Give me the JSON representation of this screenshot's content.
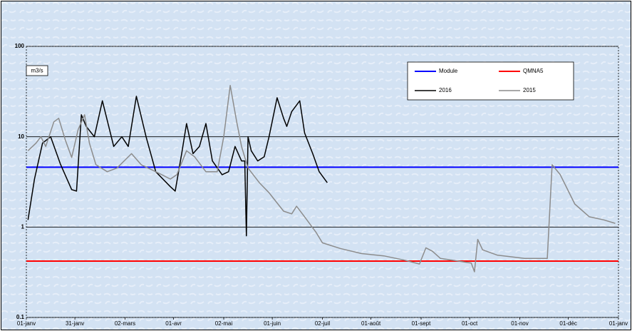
{
  "chart_data": {
    "type": "line",
    "y_label": "m3/s",
    "log_y": true,
    "legend": "top-right",
    "ylim": [
      0.1,
      100
    ],
    "yticks": [
      0.1,
      1,
      10,
      100
    ],
    "xlim": [
      0,
      366
    ],
    "xticks": [
      {
        "value": 0,
        "label": "01-janv"
      },
      {
        "value": 30,
        "label": "31-janv"
      },
      {
        "value": 61,
        "label": "02-mars"
      },
      {
        "value": 91,
        "label": "01-avr"
      },
      {
        "value": 122,
        "label": "02-mai"
      },
      {
        "value": 152,
        "label": "01-juin"
      },
      {
        "value": 183,
        "label": "02-juil"
      },
      {
        "value": 213,
        "label": "01-août"
      },
      {
        "value": 244,
        "label": "01-sept"
      },
      {
        "value": 274,
        "label": "01-oct"
      },
      {
        "value": 305,
        "label": "01-nov"
      },
      {
        "value": 335,
        "label": "01-déc"
      },
      {
        "value": 366,
        "label": "01-janv"
      }
    ],
    "series": [
      {
        "name": "Module",
        "color": "#0000ff",
        "value": 4.6
      },
      {
        "name": "QMNA5",
        "color": "#ff0000",
        "value": 0.42
      },
      {
        "name": "2016",
        "color": "#000000",
        "x": [
          1,
          5,
          10,
          15,
          21,
          28,
          31,
          34,
          37,
          42,
          47,
          54,
          59,
          63,
          68,
          74,
          80,
          89,
          92,
          96,
          99,
          103,
          107,
          111,
          115,
          121,
          125,
          129,
          133,
          135,
          136,
          137,
          139,
          143,
          147,
          150,
          155,
          159,
          161,
          164,
          169,
          172,
          177,
          181,
          186
        ],
        "values": [
          1.2,
          3.4,
          8.5,
          10,
          5,
          2.6,
          2.5,
          17.5,
          13,
          10,
          25,
          7.8,
          10,
          7.8,
          28,
          10,
          4.1,
          2.8,
          2.5,
          6.5,
          14,
          6.5,
          7.8,
          14,
          5.4,
          3.8,
          4.1,
          7.8,
          5.4,
          5.4,
          0.8,
          10,
          7,
          5.4,
          6,
          10,
          27,
          16,
          13,
          19,
          25,
          11,
          6.5,
          4.1,
          3.1
        ]
      },
      {
        "name": "2015",
        "color": "#8c8c8c",
        "x": [
          1,
          6,
          9,
          12,
          17,
          20,
          24,
          28,
          32,
          36,
          39,
          43,
          50,
          56,
          65,
          71,
          80,
          89,
          93,
          99,
          104,
          111,
          118,
          122,
          126,
          130,
          133,
          137,
          144,
          150,
          159,
          164,
          167,
          172,
          179,
          183,
          194,
          207,
          221,
          234,
          243,
          247,
          251,
          256,
          275,
          277,
          279,
          282,
          291,
          308,
          322,
          325,
          330,
          339,
          348,
          357,
          364
        ],
        "values": [
          7,
          8.5,
          10,
          7.8,
          14.6,
          16,
          9.3,
          5.9,
          12,
          17.5,
          8.5,
          4.9,
          4.1,
          4.5,
          6.5,
          4.9,
          4.1,
          3.4,
          3.8,
          7,
          6,
          4.1,
          4.1,
          10,
          37,
          14.6,
          7.8,
          4.5,
          3.1,
          2.4,
          1.5,
          1.4,
          1.7,
          1.3,
          0.88,
          0.67,
          0.58,
          0.51,
          0.48,
          0.43,
          0.39,
          0.59,
          0.54,
          0.45,
          0.4,
          0.32,
          0.73,
          0.56,
          0.49,
          0.45,
          0.45,
          4.9,
          3.8,
          1.8,
          1.3,
          1.2,
          1.1
        ]
      }
    ]
  }
}
